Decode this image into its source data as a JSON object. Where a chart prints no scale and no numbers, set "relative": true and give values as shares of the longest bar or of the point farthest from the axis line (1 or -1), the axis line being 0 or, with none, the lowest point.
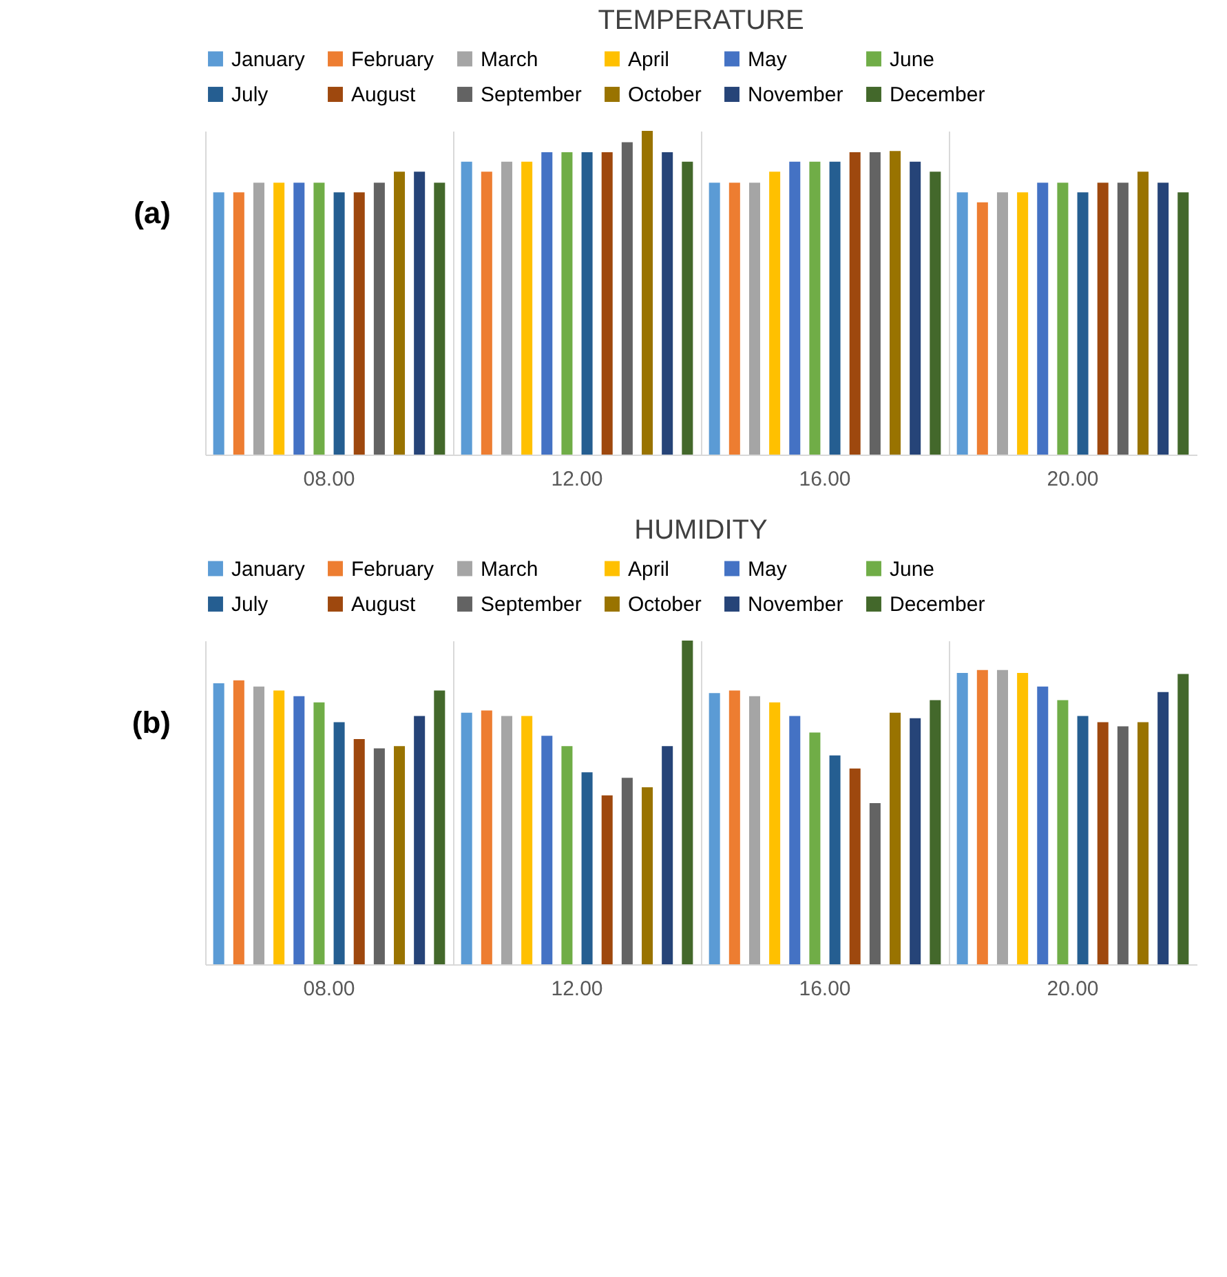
{
  "chart_data": [
    {
      "type": "bar",
      "title": "TEMPERATURE",
      "relative": true,
      "grid": "x",
      "legend": "top",
      "tick_labels": "x",
      "annotations": [
        "(a)"
      ],
      "categories": [
        "08.00",
        "12.00",
        "16.00",
        "20.00"
      ],
      "series": [
        {
          "name": "January",
          "color": "#5b9bd5",
          "values": [
            0.81,
            0.905,
            0.84,
            0.81
          ]
        },
        {
          "name": "February",
          "color": "#ed7d31",
          "values": [
            0.81,
            0.874,
            0.84,
            0.779
          ]
        },
        {
          "name": "March",
          "color": "#a5a5a5",
          "values": [
            0.84,
            0.905,
            0.84,
            0.81
          ]
        },
        {
          "name": "April",
          "color": "#ffc000",
          "values": [
            0.84,
            0.905,
            0.874,
            0.81
          ]
        },
        {
          "name": "May",
          "color": "#4472c4",
          "values": [
            0.84,
            0.934,
            0.905,
            0.84
          ]
        },
        {
          "name": "June",
          "color": "#70ad47",
          "values": [
            0.84,
            0.934,
            0.905,
            0.84
          ]
        },
        {
          "name": "July",
          "color": "#255e91",
          "values": [
            0.81,
            0.934,
            0.905,
            0.81
          ]
        },
        {
          "name": "August",
          "color": "#9e480e",
          "values": [
            0.81,
            0.934,
            0.934,
            0.84
          ]
        },
        {
          "name": "September",
          "color": "#636363",
          "values": [
            0.84,
            0.965,
            0.934,
            0.84
          ]
        },
        {
          "name": "October",
          "color": "#997300",
          "values": [
            0.874,
            1,
            0.938,
            0.874
          ]
        },
        {
          "name": "November",
          "color": "#264478",
          "values": [
            0.874,
            0.934,
            0.905,
            0.84
          ]
        },
        {
          "name": "December",
          "color": "#43682b",
          "values": [
            0.84,
            0.905,
            0.874,
            0.81
          ]
        }
      ]
    },
    {
      "type": "bar",
      "title": "HUMIDITY",
      "relative": true,
      "grid": "x",
      "legend": "top",
      "tick_labels": "x",
      "annotations": [
        "(b)"
      ],
      "categories": [
        "08.00",
        "12.00",
        "16.00",
        "20.00"
      ],
      "series": [
        {
          "name": "January",
          "color": "#5b9bd5",
          "values": [
            0.868,
            0.777,
            0.838,
            0.9
          ]
        },
        {
          "name": "February",
          "color": "#ed7d31",
          "values": [
            0.877,
            0.784,
            0.846,
            0.909
          ]
        },
        {
          "name": "March",
          "color": "#a5a5a5",
          "values": [
            0.858,
            0.767,
            0.828,
            0.909
          ]
        },
        {
          "name": "April",
          "color": "#ffc000",
          "values": [
            0.846,
            0.767,
            0.809,
            0.9
          ]
        },
        {
          "name": "May",
          "color": "#4472c4",
          "values": [
            0.828,
            0.706,
            0.767,
            0.858
          ]
        },
        {
          "name": "June",
          "color": "#70ad47",
          "values": [
            0.809,
            0.674,
            0.716,
            0.816
          ]
        },
        {
          "name": "July",
          "color": "#255e91",
          "values": [
            0.748,
            0.593,
            0.645,
            0.767
          ]
        },
        {
          "name": "August",
          "color": "#9e480e",
          "values": [
            0.696,
            0.522,
            0.605,
            0.748
          ]
        },
        {
          "name": "September",
          "color": "#636363",
          "values": [
            0.667,
            0.576,
            0.498,
            0.735
          ]
        },
        {
          "name": "October",
          "color": "#997300",
          "values": [
            0.674,
            0.547,
            0.777,
            0.748
          ]
        },
        {
          "name": "November",
          "color": "#264478",
          "values": [
            0.767,
            0.674,
            0.76,
            0.841
          ]
        },
        {
          "name": "December",
          "color": "#43682b",
          "values": [
            0.846,
            1,
            0.816,
            0.897
          ]
        }
      ]
    }
  ]
}
